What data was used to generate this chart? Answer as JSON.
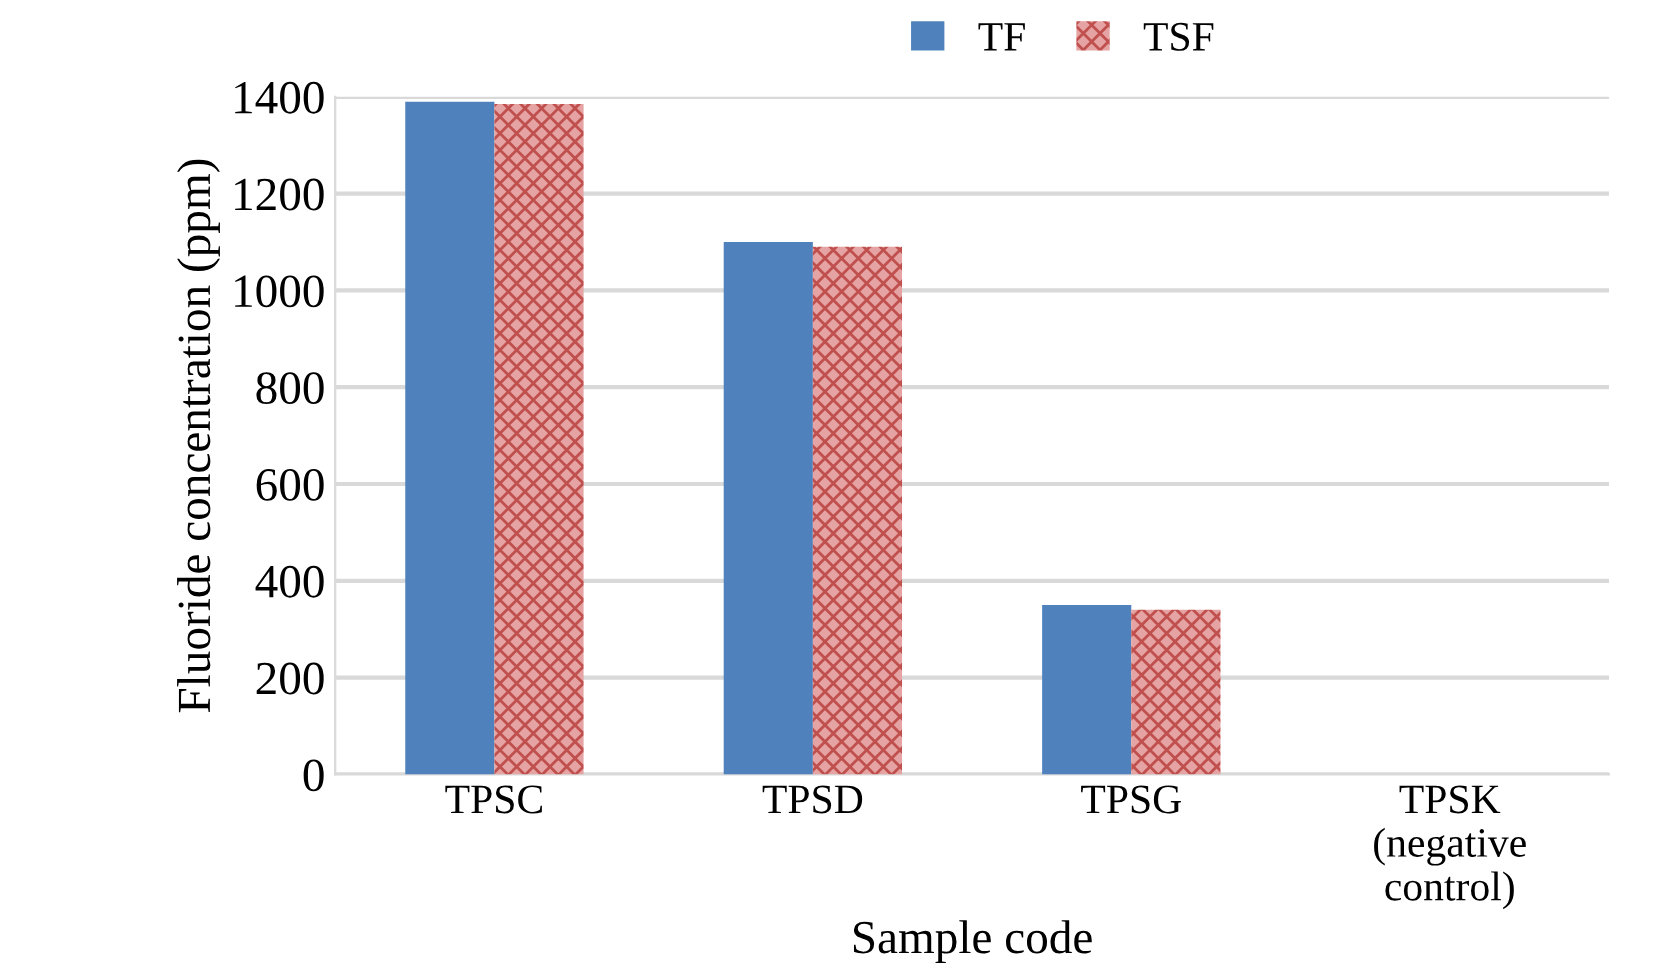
{
  "chart_data": {
    "type": "bar",
    "xlabel": "Sample code",
    "ylabel": "Fluoride concentration (ppm)",
    "categories": [
      "TPSC",
      "TPSD",
      "TPSG",
      "TPSK\n(negative\ncontrol)"
    ],
    "series": [
      {
        "name": "TF",
        "color": "#4f81bd",
        "values": [
          1390,
          1100,
          350,
          0
        ]
      },
      {
        "name": "TSF",
        "color": "#e6a3a3",
        "values": [
          1385,
          1090,
          340,
          0
        ]
      }
    ],
    "ylim": [
      0,
      1400
    ],
    "yticks": [
      0,
      200,
      400,
      600,
      800,
      1000,
      1200,
      1400
    ],
    "grid": "y",
    "legend": "top right"
  }
}
